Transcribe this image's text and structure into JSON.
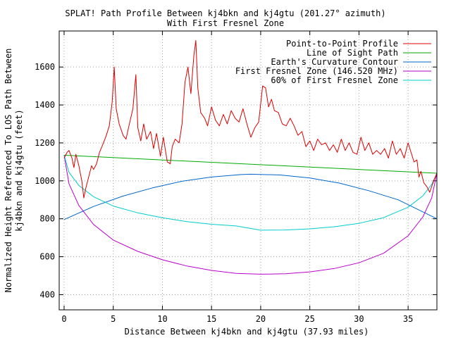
{
  "chart_data": {
    "type": "line",
    "title": "SPLAT! Path Profile Between kj4bkn and kj4gtu (201.27° azimuth)",
    "subtitle": "With First Fresnel Zone",
    "xlabel": "Distance Between kj4bkn and kj4gtu (37.93 miles)",
    "ylabel_line1": "Normalized Height Referenced To LOS Path Between",
    "ylabel_line2": "kj4bkn and kj4gtu (feet)",
    "xlim": [
      -0.5,
      37.93
    ],
    "ylim": [
      320,
      1790
    ],
    "xticks": [
      0,
      5,
      10,
      15,
      20,
      25,
      30,
      35
    ],
    "yticks": [
      400,
      600,
      800,
      1000,
      1200,
      1400,
      1600
    ],
    "grid": true,
    "legend_position": "top-right",
    "colors": {
      "profile": "#dd0000",
      "los": "#00aa00",
      "curvature": "#0066cc",
      "fresnel": "#bb00cc",
      "fresnel60": "#00cccc"
    },
    "series": [
      {
        "name": "Point-to-Point Profile",
        "key": "profile",
        "x": [
          0,
          0.3,
          0.5,
          0.8,
          1.0,
          1.2,
          1.5,
          1.8,
          2.0,
          2.2,
          2.5,
          2.8,
          3.0,
          3.3,
          3.6,
          4.0,
          4.3,
          4.6,
          4.9,
          5.1,
          5.3,
          5.6,
          6.0,
          6.3,
          6.6,
          7.0,
          7.3,
          7.5,
          7.8,
          8.1,
          8.4,
          8.8,
          9.1,
          9.4,
          9.8,
          10.1,
          10.5,
          10.8,
          11.0,
          11.3,
          11.7,
          12.0,
          12.3,
          12.6,
          12.9,
          13.2,
          13.4,
          13.6,
          13.9,
          14.3,
          14.6,
          15.0,
          15.4,
          15.8,
          16.2,
          16.6,
          17.0,
          17.4,
          17.8,
          18.2,
          18.6,
          19.0,
          19.4,
          19.8,
          20.2,
          20.5,
          20.8,
          21.1,
          21.4,
          21.8,
          22.2,
          22.6,
          23.0,
          23.4,
          23.8,
          24.2,
          24.6,
          25.0,
          25.4,
          25.8,
          26.2,
          26.6,
          27.0,
          27.4,
          27.8,
          28.2,
          28.6,
          29.0,
          29.4,
          29.8,
          30.2,
          30.6,
          31.0,
          31.4,
          31.8,
          32.2,
          32.6,
          33.0,
          33.4,
          33.8,
          34.2,
          34.6,
          35.0,
          35.3,
          35.6,
          35.9,
          36.1,
          36.3,
          36.6,
          36.9,
          37.2,
          37.6,
          37.93
        ],
        "y": [
          1120,
          1150,
          1160,
          1120,
          1070,
          1140,
          1080,
          1000,
          910,
          960,
          1020,
          1080,
          1060,
          1090,
          1150,
          1200,
          1240,
          1290,
          1420,
          1600,
          1380,
          1300,
          1240,
          1220,
          1290,
          1380,
          1560,
          1280,
          1210,
          1300,
          1220,
          1260,
          1170,
          1250,
          1130,
          1230,
          1100,
          1090,
          1180,
          1220,
          1200,
          1300,
          1520,
          1600,
          1460,
          1660,
          1740,
          1490,
          1360,
          1330,
          1290,
          1390,
          1320,
          1290,
          1350,
          1300,
          1370,
          1330,
          1310,
          1380,
          1300,
          1230,
          1280,
          1310,
          1500,
          1490,
          1390,
          1430,
          1370,
          1360,
          1300,
          1290,
          1330,
          1290,
          1240,
          1260,
          1180,
          1210,
          1160,
          1220,
          1190,
          1200,
          1160,
          1190,
          1150,
          1220,
          1160,
          1200,
          1150,
          1140,
          1230,
          1160,
          1200,
          1140,
          1160,
          1140,
          1170,
          1120,
          1210,
          1140,
          1170,
          1120,
          1200,
          1150,
          1100,
          1110,
          1020,
          1050,
          990,
          970,
          940,
          1000,
          1040
        ]
      },
      {
        "name": "Line of Sight Path",
        "key": "los",
        "x": [
          0,
          37.93
        ],
        "y": [
          1135,
          1040
        ]
      },
      {
        "name": "Earth's Curvature Contour",
        "key": "curvature",
        "x": [
          0,
          3,
          6,
          9,
          12,
          15,
          18,
          19,
          22,
          25,
          28,
          31,
          34,
          37.93
        ],
        "y": [
          796,
          865,
          920,
          963,
          998,
          1020,
          1033,
          1035,
          1031,
          1015,
          988,
          948,
          900,
          800
        ]
      },
      {
        "name": "First Fresnel Zone (146.520 MHz)",
        "key": "fresnel",
        "x": [
          0,
          0.5,
          1.5,
          3,
          5,
          7.5,
          10,
          12.5,
          15,
          17.5,
          20,
          22.5,
          25,
          27.5,
          30,
          32.5,
          35,
          36.5,
          37.4,
          37.93
        ],
        "y": [
          1135,
          985,
          870,
          770,
          688,
          628,
          584,
          551,
          528,
          512,
          508,
          510,
          520,
          538,
          568,
          618,
          710,
          810,
          910,
          1040
        ]
      },
      {
        "name": "60% of First Fresnel Zone",
        "key": "fresnel60",
        "x": [
          0,
          0.5,
          1.5,
          3,
          5,
          7.5,
          10,
          12.5,
          15,
          17.5,
          20,
          22.5,
          25,
          27.5,
          30,
          32.5,
          35,
          36.5,
          37.4,
          37.93
        ],
        "y": [
          1135,
          1045,
          976,
          916,
          867,
          831,
          805,
          785,
          771,
          762,
          740,
          741,
          747,
          758,
          776,
          806,
          861,
          921,
          981,
          1040
        ]
      }
    ]
  }
}
